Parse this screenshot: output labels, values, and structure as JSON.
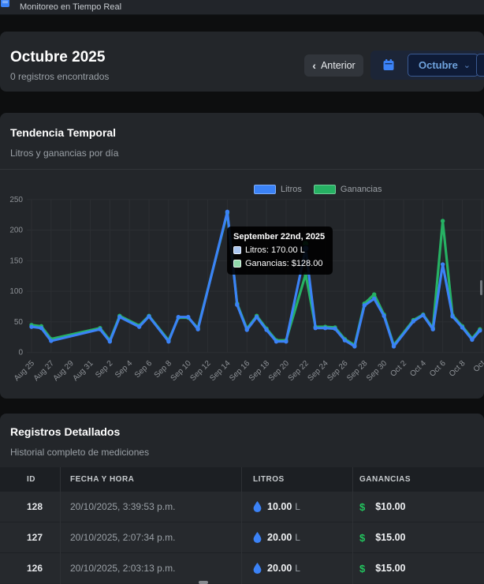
{
  "topbar": {
    "title": "Monitoreo en Tiempo Real"
  },
  "header": {
    "title": "Octubre 2025",
    "subtitle": "0 registros encontrados",
    "prev_button_label": "Anterior",
    "prev_chevron": "‹",
    "month_select_value": "Octubre",
    "month_select_chevron": "⌄"
  },
  "chart": {
    "title": "Tendencia Temporal",
    "subtitle": "Litros y ganancias por día",
    "legend": [
      {
        "label": "Litros",
        "color": "#3b82f6"
      },
      {
        "label": "Ganancias",
        "color": "#26b163"
      }
    ],
    "tooltip": {
      "title": "September 22nd, 2025",
      "items": [
        {
          "label": "Litros: 170.00 L",
          "color": "#a9c6f2"
        },
        {
          "label": "Ganancias: $128.00",
          "color": "#8fd8aa"
        }
      ]
    }
  },
  "chart_data": {
    "type": "line",
    "title": "Tendencia Temporal",
    "ylim": [
      0,
      250
    ],
    "y_ticks": [
      0,
      50,
      100,
      150,
      200,
      250
    ],
    "x_tick_labels": [
      "Aug 25",
      "Aug 27",
      "Aug 29",
      "Aug 31",
      "Sep 2",
      "Sep 4",
      "Sep 6",
      "Sep 8",
      "Sep 10",
      "Sep 12",
      "Sep 14",
      "Sep 16",
      "Sep 18",
      "Sep 20",
      "Sep 22",
      "Sep 24",
      "Sep 26",
      "Sep 28",
      "Sep 30",
      "Oct 2",
      "Oct 4",
      "Oct 6",
      "Oct 8",
      "Oct"
    ],
    "x_days_per_tick": 2,
    "grid": true,
    "legend_position": "top",
    "tooltip_day": 28,
    "tooltip_values": {
      "litros": 170.0,
      "ganancias": 128.0
    },
    "series": [
      {
        "name": "Ganancias",
        "color": "#26b163",
        "points": [
          [
            0,
            45
          ],
          [
            1,
            43
          ],
          [
            2,
            22
          ],
          [
            7,
            40
          ],
          [
            8,
            20
          ],
          [
            9,
            60
          ],
          [
            11,
            44
          ],
          [
            12,
            60
          ],
          [
            14,
            20
          ],
          [
            15,
            57
          ],
          [
            16,
            57
          ],
          [
            17,
            40
          ],
          [
            20,
            228
          ],
          [
            21,
            80
          ],
          [
            22,
            39
          ],
          [
            23,
            60
          ],
          [
            24,
            39
          ],
          [
            25,
            20
          ],
          [
            26,
            20
          ],
          [
            28,
            128
          ],
          [
            29,
            42
          ],
          [
            30,
            42
          ],
          [
            31,
            41
          ],
          [
            32,
            22
          ],
          [
            33,
            12
          ],
          [
            34,
            80
          ],
          [
            35,
            95
          ],
          [
            36,
            62
          ],
          [
            37,
            12
          ],
          [
            39,
            53
          ],
          [
            40,
            62
          ],
          [
            41,
            40
          ],
          [
            42,
            215
          ],
          [
            43,
            61
          ],
          [
            44,
            43
          ],
          [
            45,
            23
          ],
          [
            45.8,
            38
          ]
        ]
      },
      {
        "name": "Litros",
        "color": "#3b82f6",
        "points": [
          [
            0,
            42
          ],
          [
            1,
            40
          ],
          [
            2,
            19
          ],
          [
            7,
            38
          ],
          [
            8,
            18
          ],
          [
            9,
            58
          ],
          [
            11,
            42
          ],
          [
            12,
            59
          ],
          [
            14,
            18
          ],
          [
            15,
            58
          ],
          [
            16,
            58
          ],
          [
            17,
            38
          ],
          [
            20,
            230
          ],
          [
            21,
            78
          ],
          [
            22,
            37
          ],
          [
            23,
            58
          ],
          [
            24,
            37
          ],
          [
            25,
            18
          ],
          [
            26,
            18
          ],
          [
            28,
            170
          ],
          [
            29,
            40
          ],
          [
            30,
            40
          ],
          [
            31,
            39
          ],
          [
            32,
            20
          ],
          [
            33,
            10
          ],
          [
            34,
            77
          ],
          [
            35,
            88
          ],
          [
            36,
            60
          ],
          [
            37,
            10
          ],
          [
            39,
            51
          ],
          [
            40,
            61
          ],
          [
            41,
            38
          ],
          [
            42,
            144
          ],
          [
            43,
            59
          ],
          [
            44,
            41
          ],
          [
            45,
            21
          ],
          [
            45.8,
            36
          ]
        ]
      }
    ]
  },
  "table": {
    "title": "Registros Detallados",
    "subtitle": "Historial completo de mediciones",
    "columns": [
      "ID",
      "FECHA Y HORA",
      "LITROS",
      "GANANCIAS"
    ],
    "rows": [
      {
        "id": "128",
        "datetime": "20/10/2025, 3:39:53 p.m.",
        "litros": "10.00",
        "unit": "L",
        "ganancias": "$10.00"
      },
      {
        "id": "127",
        "datetime": "20/10/2025, 2:07:34 p.m.",
        "litros": "20.00",
        "unit": "L",
        "ganancias": "$15.00"
      },
      {
        "id": "126",
        "datetime": "20/10/2025, 2:03:13 p.m.",
        "litros": "20.00",
        "unit": "L",
        "ganancias": "$15.00"
      }
    ]
  },
  "colors": {
    "accent_blue": "#3b82f6",
    "accent_green": "#22c55e",
    "select_text": "#6fa3dd",
    "card_bg": "#23262a",
    "axis_text": "#8d9196",
    "grid_line": "#2c2f33"
  }
}
